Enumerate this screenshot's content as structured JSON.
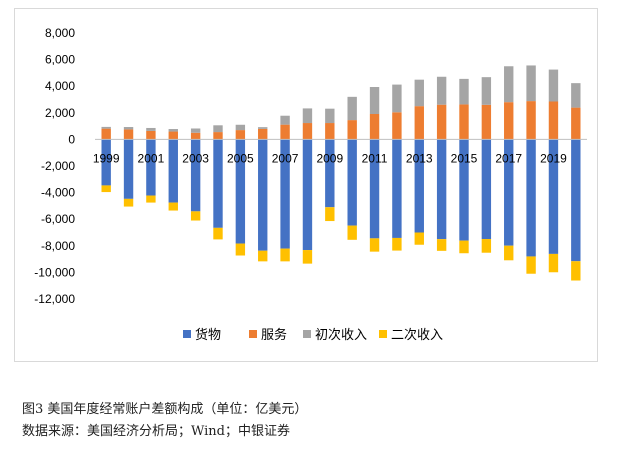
{
  "caption": {
    "figure": "图3   美国年度经常账户差额构成（单位：亿美元）",
    "source": "数据来源：美国经济分析局；Wind；中银证券"
  },
  "chart_data": {
    "type": "bar",
    "stacked": true,
    "categories": [
      "1999",
      "2000",
      "2001",
      "2002",
      "2003",
      "2004",
      "2005",
      "2006",
      "2007",
      "2008",
      "2009",
      "2010",
      "2011",
      "2012",
      "2013",
      "2014",
      "2015",
      "2016",
      "2017",
      "2018",
      "2019",
      "2020"
    ],
    "x_tick_labels": [
      "1999",
      "2001",
      "2003",
      "2005",
      "2007",
      "2009",
      "2011",
      "2013",
      "2015",
      "2017",
      "2019"
    ],
    "series": [
      {
        "name": "货物",
        "color": "#4472c4",
        "values": [
          -3460,
          -4470,
          -4220,
          -4750,
          -5410,
          -6650,
          -7830,
          -8370,
          -8210,
          -8320,
          -5100,
          -6480,
          -7440,
          -7410,
          -7000,
          -7500,
          -7610,
          -7490,
          -7990,
          -8800,
          -8610,
          -9160
        ]
      },
      {
        "name": "服务",
        "color": "#ed7d31",
        "values": [
          810,
          750,
          640,
          590,
          500,
          550,
          700,
          790,
          1110,
          1230,
          1230,
          1450,
          1910,
          2040,
          2500,
          2610,
          2630,
          2600,
          2800,
          2880,
          2850,
          2390
        ]
      },
      {
        "name": "初次收入",
        "color": "#a5a5a5",
        "values": [
          130,
          180,
          220,
          190,
          320,
          510,
          400,
          130,
          670,
          1100,
          1080,
          1750,
          2030,
          2080,
          1990,
          2100,
          1920,
          2080,
          2700,
          2680,
          2400,
          1840
        ]
      },
      {
        "name": "二次收入",
        "color": "#ffc000",
        "values": [
          -500,
          -580,
          -530,
          -600,
          -690,
          -870,
          -900,
          -800,
          -960,
          -1020,
          -1040,
          -1070,
          -1000,
          -950,
          -920,
          -880,
          -950,
          -1030,
          -1100,
          -1300,
          -1380,
          -1450
        ]
      }
    ],
    "ylim": [
      -12000,
      8000
    ],
    "yticks": [
      8000,
      6000,
      4000,
      2000,
      0,
      -2000,
      -4000,
      -6000,
      -8000,
      -10000,
      -12000
    ],
    "ytick_labels": [
      "8,000",
      "6,000",
      "4,000",
      "2,000",
      "0",
      "-2,000",
      "-4,000",
      "-6,000",
      "-8,000",
      "-10,000",
      "-12,000"
    ],
    "grid": false,
    "legend": "bottom"
  }
}
